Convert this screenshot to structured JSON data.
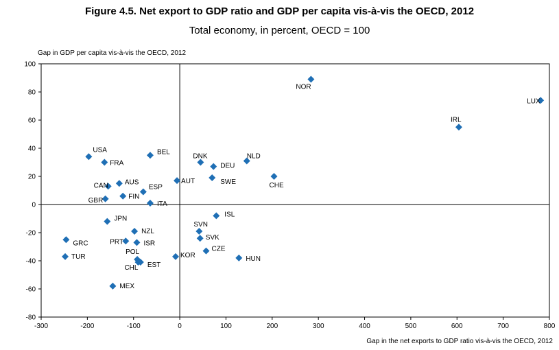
{
  "header": {
    "title": "Figure 4.5. Net export to GDP ratio and GDP per capita vis-à-vis the OECD, 2012",
    "subtitle": "Total economy, in percent, OECD = 100"
  },
  "chart_data": {
    "type": "scatter",
    "title": "Figure 4.5. Net export to GDP ratio and GDP per capita vis-à-vis the OECD, 2012",
    "subtitle": "Total economy, in percent, OECD = 100",
    "xlabel": "Gap in the net exports to GDP ratio vis-à-vis the OECD, 2012",
    "ylabel": "Gap in GDP per capita vis-à-vis the OECD, 2012",
    "xlim": [
      -300,
      800
    ],
    "ylim": [
      -80,
      100
    ],
    "xticks": [
      -300,
      -200,
      -100,
      0,
      100,
      200,
      300,
      400,
      500,
      600,
      700,
      800
    ],
    "yticks": [
      -80,
      -60,
      -40,
      -20,
      0,
      20,
      40,
      60,
      80,
      100
    ],
    "marker_color": "#1f6fb5",
    "grid": false,
    "points": [
      {
        "label": "NOR",
        "x": 284,
        "y": 89
      },
      {
        "label": "LUX",
        "x": 781,
        "y": 74
      },
      {
        "label": "IRL",
        "x": 604,
        "y": 55
      },
      {
        "label": "USA",
        "x": -197,
        "y": 34
      },
      {
        "label": "BEL",
        "x": -64,
        "y": 35
      },
      {
        "label": "FRA",
        "x": -163,
        "y": 30
      },
      {
        "label": "DNK",
        "x": 45,
        "y": 30
      },
      {
        "label": "DEU",
        "x": 73,
        "y": 27
      },
      {
        "label": "NLD",
        "x": 145,
        "y": 31
      },
      {
        "label": "CHE",
        "x": 204,
        "y": 20
      },
      {
        "label": "SWE",
        "x": 70,
        "y": 19
      },
      {
        "label": "AUT",
        "x": -6,
        "y": 17
      },
      {
        "label": "AUS",
        "x": -131,
        "y": 15
      },
      {
        "label": "CAN",
        "x": -155,
        "y": 13
      },
      {
        "label": "ESP",
        "x": -79,
        "y": 9
      },
      {
        "label": "FIN",
        "x": -123,
        "y": 6
      },
      {
        "label": "GBR",
        "x": -161,
        "y": 4
      },
      {
        "label": "ITA",
        "x": -64,
        "y": 1
      },
      {
        "label": "ISL",
        "x": 79,
        "y": -8
      },
      {
        "label": "JPN",
        "x": -157,
        "y": -12
      },
      {
        "label": "NZL",
        "x": -98,
        "y": -19
      },
      {
        "label": "SVN",
        "x": 42,
        "y": -19
      },
      {
        "label": "SVK",
        "x": 44,
        "y": -24
      },
      {
        "label": "GRC",
        "x": -246,
        "y": -25
      },
      {
        "label": "PRT",
        "x": -117,
        "y": -26
      },
      {
        "label": "ISR",
        "x": -93,
        "y": -27
      },
      {
        "label": "CZE",
        "x": 57,
        "y": -33
      },
      {
        "label": "TUR",
        "x": -248,
        "y": -37
      },
      {
        "label": "KOR",
        "x": -9,
        "y": -37
      },
      {
        "label": "HUN",
        "x": 128,
        "y": -38
      },
      {
        "label": "POL",
        "x": -92,
        "y": -39
      },
      {
        "label": "CHL",
        "x": -90,
        "y": -41
      },
      {
        "label": "EST",
        "x": -85,
        "y": -41
      },
      {
        "label": "MEX",
        "x": -145,
        "y": -58
      }
    ]
  }
}
